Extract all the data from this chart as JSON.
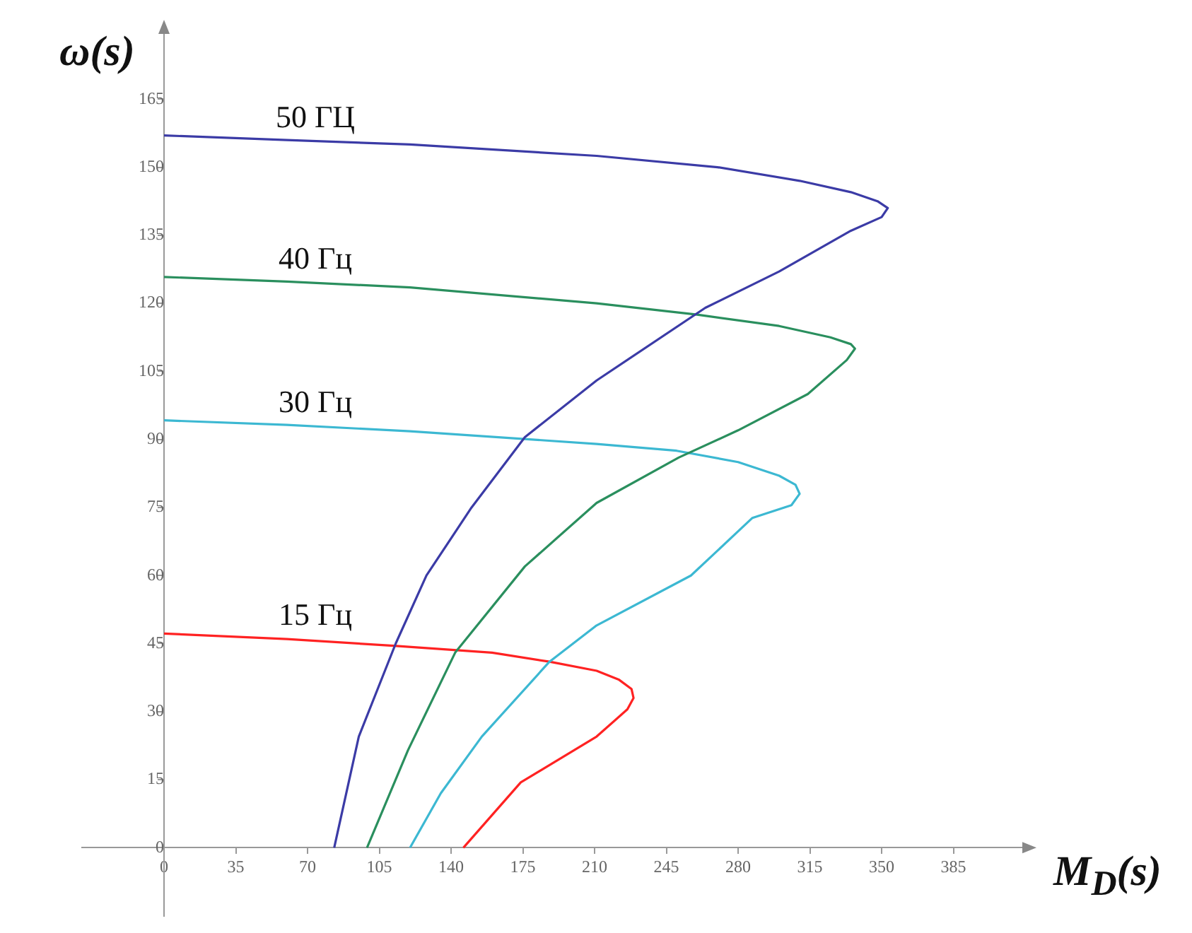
{
  "chart_data": {
    "type": "line",
    "xlabel": "M$_{D}$(s)",
    "ylabel": "ω(s)",
    "xlim": [
      -40,
      420
    ],
    "ylim": [
      -15,
      180
    ],
    "xticks": [
      0,
      35,
      70,
      105,
      140,
      175,
      210,
      245,
      280,
      315,
      350,
      385
    ],
    "yticks": [
      0,
      15,
      30,
      45,
      60,
      75,
      90,
      105,
      120,
      135,
      150,
      165
    ],
    "grid": false,
    "legend": false,
    "marker": "none",
    "line_style": "solid",
    "series": [
      {
        "name": "50 ГЦ",
        "color": "#3b3ba6",
        "x": [
          0,
          60,
          120,
          211,
          270,
          310,
          335,
          348,
          353,
          350,
          335,
          300,
          264,
          211,
          176,
          150,
          128,
          113,
          95,
          83
        ],
        "values": [
          157,
          156,
          155,
          152.5,
          150,
          147,
          144.5,
          142.5,
          141,
          139,
          136,
          127,
          119,
          103,
          90.5,
          75,
          60,
          45,
          24.5,
          0
        ]
      },
      {
        "name": "40 Гц",
        "color": "#2a8f5e",
        "x": [
          0,
          60,
          120,
          211,
          260,
          300,
          325,
          335,
          337,
          333,
          314,
          280,
          251,
          211,
          176,
          142,
          119,
          99
        ],
        "values": [
          125.8,
          124.8,
          123.5,
          120,
          117.5,
          115,
          112.5,
          111,
          110,
          107.5,
          100,
          92,
          86,
          76,
          62,
          43,
          21.5,
          0
        ]
      },
      {
        "name": "30 Гц",
        "color": "#3cb8d2",
        "x": [
          0,
          60,
          120,
          211,
          250,
          280,
          300,
          308,
          310,
          306,
          287,
          257,
          211,
          188,
          155,
          135,
          120
        ],
        "values": [
          94.2,
          93.2,
          91.8,
          89,
          87.5,
          85,
          82,
          80,
          78,
          75.5,
          72.7,
          60,
          49,
          41,
          24.5,
          12,
          0
        ]
      },
      {
        "name": "15 Гц",
        "color": "#ff2222",
        "x": [
          0,
          60,
          112,
          160,
          188,
          211,
          222,
          228,
          229,
          226,
          211,
          174,
          146
        ],
        "values": [
          47.2,
          46,
          44.5,
          43,
          41,
          39,
          37,
          35,
          33,
          30.5,
          24.5,
          14.4,
          0
        ]
      }
    ]
  }
}
